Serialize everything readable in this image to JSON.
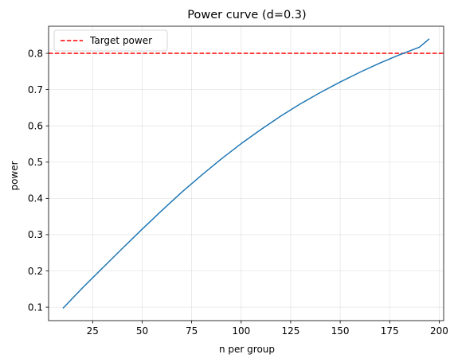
{
  "chart_data": {
    "type": "line",
    "title": "Power curve (d=0.3)",
    "xlabel": "n per group",
    "ylabel": "power",
    "xlim": [
      2.75,
      202.25
    ],
    "ylim": [
      0.0629,
      0.8747
    ],
    "xticks": [
      25,
      50,
      75,
      100,
      125,
      150,
      175,
      200
    ],
    "yticks": [
      0.1,
      0.2,
      0.3,
      0.4,
      0.5,
      0.6,
      0.7,
      0.8
    ],
    "grid": true,
    "legend_position": "top-left",
    "series": [
      {
        "kind": "line",
        "color": "#1f77b4",
        "x": [
          10,
          20,
          30,
          40,
          50,
          60,
          70,
          80,
          90,
          100,
          110,
          120,
          130,
          140,
          150,
          160,
          170,
          180,
          190,
          195
        ],
        "y": [
          0.097,
          0.154,
          0.208,
          0.262,
          0.315,
          0.367,
          0.417,
          0.464,
          0.509,
          0.551,
          0.59,
          0.627,
          0.661,
          0.692,
          0.721,
          0.748,
          0.773,
          0.796,
          0.817,
          0.84
        ]
      }
    ],
    "reference_lines": [
      {
        "name": "Target power",
        "orientation": "horizontal",
        "y": 0.8,
        "color": "#ff0000",
        "style": "dashed"
      }
    ]
  }
}
